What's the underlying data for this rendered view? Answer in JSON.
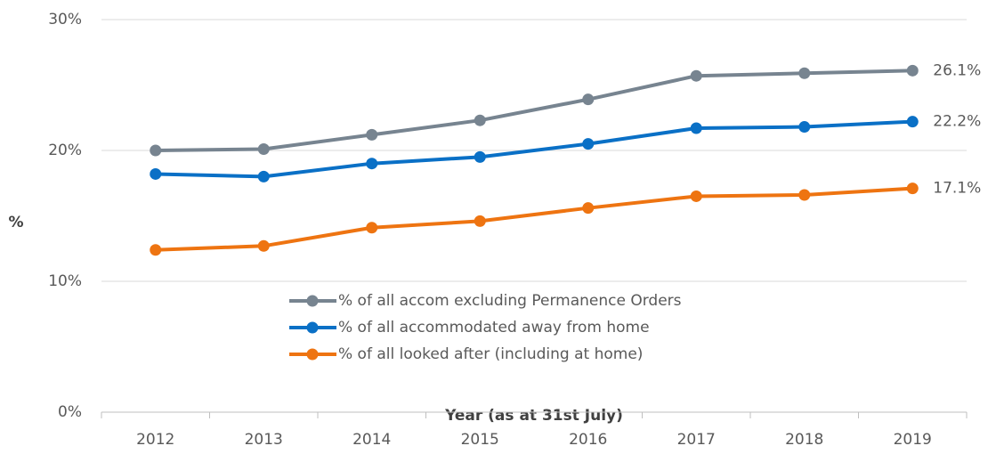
{
  "chart_data": {
    "type": "line",
    "xlabel": "Year (as at 31st July)",
    "ylabel": "%",
    "categories": [
      "2012",
      "2013",
      "2014",
      "2015",
      "2016",
      "2017",
      "2018",
      "2019"
    ],
    "series": [
      {
        "name": "% of all accom excluding Permanence Orders",
        "color": "#778490",
        "values": [
          20.0,
          20.1,
          21.2,
          22.3,
          23.9,
          25.7,
          25.9,
          26.1
        ],
        "value_labels": [
          null,
          null,
          null,
          null,
          null,
          null,
          null,
          "26.1%"
        ]
      },
      {
        "name": "% of all accommodated away from home",
        "color": "#0a70c6",
        "values": [
          18.2,
          18.0,
          19.0,
          19.5,
          20.5,
          21.7,
          21.8,
          22.2
        ],
        "value_labels": [
          null,
          null,
          null,
          null,
          null,
          null,
          null,
          "22.2%"
        ]
      },
      {
        "name": "% of all looked after (including at home)",
        "color": "#ee7411",
        "values": [
          12.4,
          12.7,
          14.1,
          14.6,
          15.6,
          16.5,
          16.6,
          17.1
        ],
        "value_labels": [
          null,
          null,
          null,
          null,
          null,
          null,
          null,
          "17.1%"
        ]
      }
    ],
    "ylim": [
      0,
      30
    ],
    "yticks": [
      {
        "value": 0,
        "label": "0%"
      },
      {
        "value": 10,
        "label": "10%"
      },
      {
        "value": 20,
        "label": "20%"
      },
      {
        "value": 30,
        "label": "30%"
      }
    ],
    "grid": true,
    "legend": "center"
  }
}
